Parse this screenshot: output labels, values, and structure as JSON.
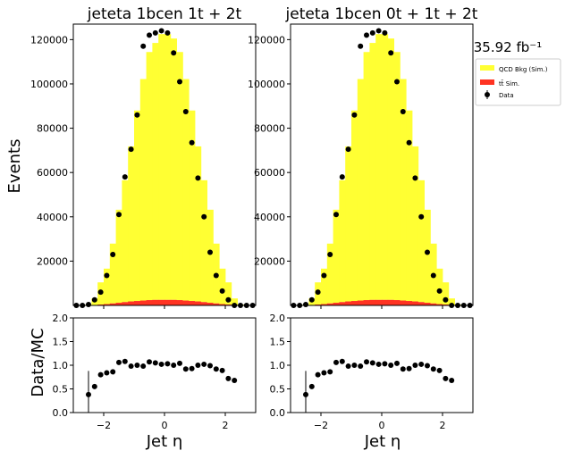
{
  "figure": {
    "ylabel_main": "Events",
    "ylabel_ratio": "Data/MC",
    "xlabel": "Jet η",
    "lumi": "35.92 fb⁻¹",
    "legend": [
      {
        "label": "QCD Bkg (Sim.)",
        "color": "#ffff33",
        "kind": "fill"
      },
      {
        "label": "tt̄ Sim.",
        "color": "#ff3322",
        "kind": "fill"
      },
      {
        "label": "Data",
        "color": "#000000",
        "kind": "marker"
      }
    ]
  },
  "chart_data": [
    {
      "type": "bar",
      "title": "jeteta  1bcen 1t + 2t",
      "xlim": [
        -3.0,
        3.0
      ],
      "ylim": [
        0,
        127000
      ],
      "yticks": [
        20000,
        40000,
        60000,
        80000,
        100000,
        120000
      ],
      "xticks": [
        -2,
        0,
        2
      ],
      "bin_edges": [
        -3.0,
        -2.8,
        -2.6,
        -2.4,
        -2.2,
        -2.0,
        -1.8,
        -1.6,
        -1.4,
        -1.2,
        -1.0,
        -0.8,
        -0.6,
        -0.4,
        -0.2,
        0.0,
        0.2,
        0.4,
        0.6,
        0.8,
        1.0,
        1.2,
        1.4,
        1.6,
        1.8,
        2.0,
        2.2,
        2.4,
        2.6,
        2.8,
        3.0
      ],
      "series": [
        {
          "name": "QCD Bkg (Sim.)",
          "values": [
            0,
            0,
            400,
            3000,
            10000,
            16000,
            27000,
            42000,
            55000,
            70000,
            86000,
            100000,
            112000,
            116000,
            120000,
            120000,
            118000,
            112000,
            100000,
            86000,
            70000,
            55000,
            42000,
            27000,
            16000,
            10000,
            3000,
            400,
            0,
            0
          ]
        },
        {
          "name": "tt̄ Sim.",
          "values": [
            0,
            0,
            20,
            150,
            400,
            600,
            900,
            1200,
            1500,
            1800,
            2000,
            2200,
            2400,
            2500,
            2500,
            2500,
            2500,
            2400,
            2200,
            2000,
            1800,
            1500,
            1200,
            900,
            600,
            400,
            150,
            20,
            0,
            0
          ]
        },
        {
          "name": "Data",
          "values": [
            0,
            0,
            400,
            2500,
            6000,
            13500,
            23000,
            41000,
            58000,
            70500,
            86000,
            117000,
            122000,
            123000,
            124000,
            123000,
            114000,
            101000,
            87500,
            73500,
            57500,
            40000,
            24000,
            13500,
            6500,
            2500,
            0,
            0,
            0,
            0
          ]
        }
      ],
      "ratio": {
        "ylim": [
          0,
          2.0
        ],
        "yticks": [
          0.0,
          0.5,
          1.0,
          1.5,
          2.0
        ],
        "x": [
          -2.5,
          -2.3,
          -2.1,
          -1.9,
          -1.7,
          -1.5,
          -1.3,
          -1.1,
          -0.9,
          -0.7,
          -0.5,
          -0.3,
          -0.1,
          0.1,
          0.3,
          0.5,
          0.7,
          0.9,
          1.1,
          1.3,
          1.5,
          1.7,
          1.9,
          2.1,
          2.3
        ],
        "values": [
          0.38,
          0.55,
          0.8,
          0.84,
          0.86,
          1.06,
          1.08,
          0.98,
          1.0,
          0.98,
          1.07,
          1.05,
          1.02,
          1.03,
          1.0,
          1.04,
          0.92,
          0.93,
          1.0,
          1.02,
          0.99,
          0.92,
          0.89,
          0.72,
          0.68
        ],
        "errors": [
          0.5,
          0,
          0,
          0,
          0,
          0,
          0,
          0,
          0,
          0,
          0,
          0,
          0,
          0,
          0,
          0,
          0,
          0,
          0,
          0,
          0,
          0,
          0,
          0,
          0
        ]
      }
    },
    {
      "type": "bar",
      "title": "jeteta  1bcen 0t + 1t + 2t",
      "xlim": [
        -3.0,
        3.0
      ],
      "ylim": [
        0,
        127000
      ],
      "yticks": [
        20000,
        40000,
        60000,
        80000,
        100000,
        120000
      ],
      "xticks": [
        -2,
        0,
        2
      ],
      "bin_edges": [
        -3.0,
        -2.8,
        -2.6,
        -2.4,
        -2.2,
        -2.0,
        -1.8,
        -1.6,
        -1.4,
        -1.2,
        -1.0,
        -0.8,
        -0.6,
        -0.4,
        -0.2,
        0.0,
        0.2,
        0.4,
        0.6,
        0.8,
        1.0,
        1.2,
        1.4,
        1.6,
        1.8,
        2.0,
        2.2,
        2.4,
        2.6,
        2.8,
        3.0
      ],
      "series": [
        {
          "name": "QCD Bkg (Sim.)",
          "values": [
            0,
            0,
            400,
            3000,
            10000,
            16000,
            27000,
            42000,
            55000,
            70000,
            86000,
            100000,
            112000,
            116000,
            120000,
            120000,
            118000,
            112000,
            100000,
            86000,
            70000,
            55000,
            42000,
            27000,
            16000,
            10000,
            3000,
            400,
            0,
            0
          ]
        },
        {
          "name": "tt̄ Sim.",
          "values": [
            0,
            0,
            20,
            150,
            400,
            600,
            900,
            1200,
            1500,
            1800,
            2000,
            2200,
            2400,
            2500,
            2500,
            2500,
            2500,
            2400,
            2200,
            2000,
            1800,
            1500,
            1200,
            900,
            600,
            400,
            150,
            20,
            0,
            0
          ]
        },
        {
          "name": "Data",
          "values": [
            0,
            0,
            400,
            2500,
            6000,
            13500,
            23000,
            41000,
            58000,
            70500,
            86000,
            117000,
            122000,
            123000,
            124000,
            123000,
            114000,
            101000,
            87500,
            73500,
            57500,
            40000,
            24000,
            13500,
            6500,
            2500,
            0,
            0,
            0,
            0
          ]
        }
      ],
      "ratio": {
        "ylim": [
          0,
          2.0
        ],
        "yticks": [
          0.0,
          0.5,
          1.0,
          1.5,
          2.0
        ],
        "x": [
          -2.5,
          -2.3,
          -2.1,
          -1.9,
          -1.7,
          -1.5,
          -1.3,
          -1.1,
          -0.9,
          -0.7,
          -0.5,
          -0.3,
          -0.1,
          0.1,
          0.3,
          0.5,
          0.7,
          0.9,
          1.1,
          1.3,
          1.5,
          1.7,
          1.9,
          2.1,
          2.3
        ],
        "values": [
          0.38,
          0.55,
          0.8,
          0.84,
          0.86,
          1.06,
          1.08,
          0.98,
          1.0,
          0.98,
          1.07,
          1.05,
          1.02,
          1.03,
          1.0,
          1.04,
          0.92,
          0.93,
          1.0,
          1.02,
          0.99,
          0.92,
          0.89,
          0.72,
          0.68
        ],
        "errors": [
          0.5,
          0,
          0,
          0,
          0,
          0,
          0,
          0,
          0,
          0,
          0,
          0,
          0,
          0,
          0,
          0,
          0,
          0,
          0,
          0,
          0,
          0,
          0,
          0,
          0
        ]
      }
    }
  ]
}
